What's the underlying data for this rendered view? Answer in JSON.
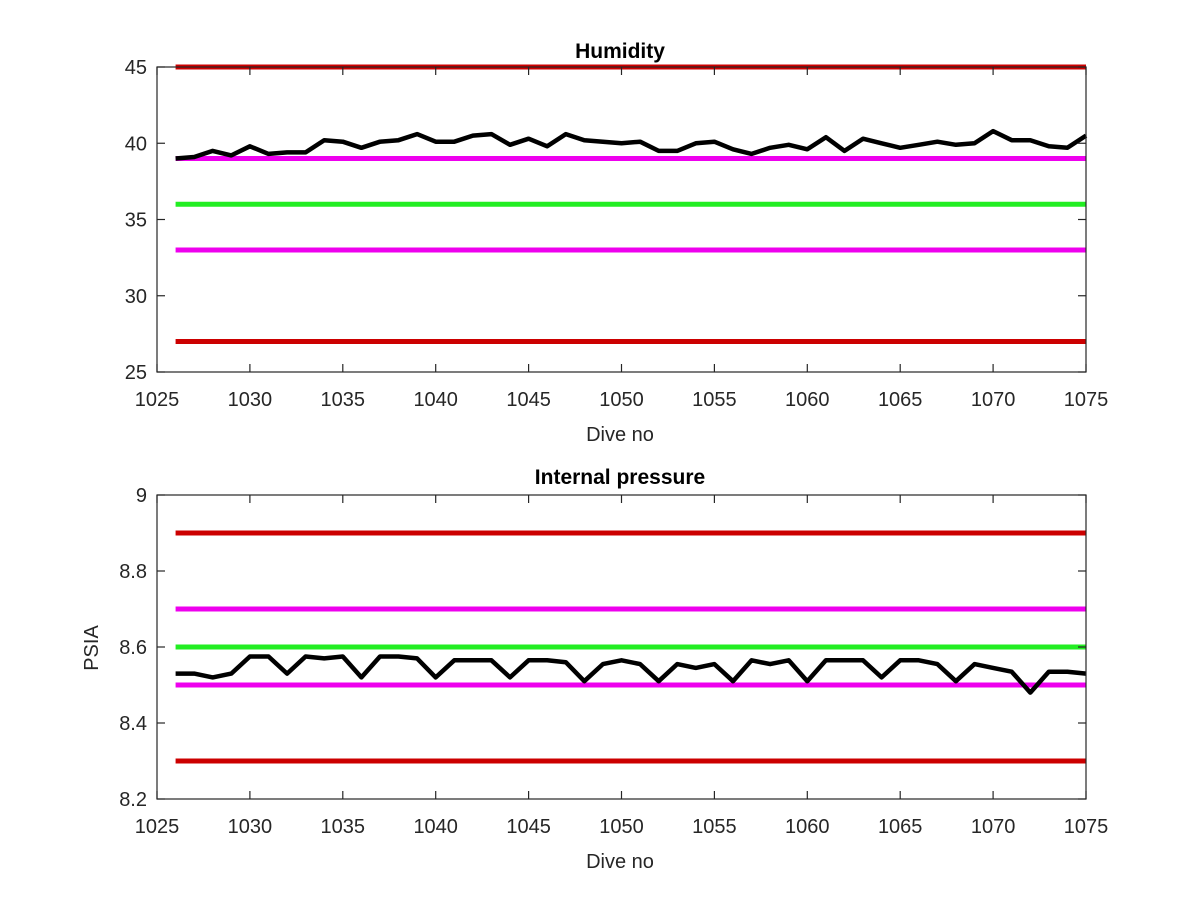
{
  "colors": {
    "background": "#ffffff",
    "axes": "#262626",
    "data_line": "#000000",
    "limit_red": "#cc0000",
    "limit_magenta": "#ee00ee",
    "nominal_green": "#22ee22"
  },
  "chart_data": [
    {
      "type": "line",
      "title": "Humidity",
      "xlabel": "Dive no",
      "ylabel": "",
      "xlim": [
        1025,
        1075
      ],
      "ylim": [
        25,
        45
      ],
      "xticks": [
        "1025",
        "1030",
        "1035",
        "1040",
        "1045",
        "1050",
        "1055",
        "1060",
        "1065",
        "1070",
        "1075"
      ],
      "yticks": [
        "25",
        "30",
        "35",
        "40",
        "45"
      ],
      "grid": false,
      "x": [
        1026,
        1027,
        1028,
        1029,
        1030,
        1031,
        1032,
        1033,
        1034,
        1035,
        1036,
        1037,
        1038,
        1039,
        1040,
        1041,
        1042,
        1043,
        1044,
        1045,
        1046,
        1047,
        1048,
        1049,
        1050,
        1051,
        1052,
        1053,
        1054,
        1055,
        1056,
        1057,
        1058,
        1059,
        1060,
        1061,
        1062,
        1063,
        1064,
        1065,
        1066,
        1067,
        1068,
        1069,
        1070,
        1071,
        1072,
        1073,
        1074,
        1075
      ],
      "series": [
        {
          "color": "#000000",
          "values": [
            39.0,
            39.1,
            39.5,
            39.2,
            39.8,
            39.3,
            39.4,
            39.4,
            40.2,
            40.1,
            39.7,
            40.1,
            40.2,
            40.6,
            40.1,
            40.1,
            40.5,
            40.6,
            39.9,
            40.3,
            39.8,
            40.6,
            40.2,
            40.1,
            40.0,
            40.1,
            39.5,
            39.5,
            40.0,
            40.1,
            39.6,
            39.3,
            39.7,
            39.9,
            39.6,
            40.4,
            39.5,
            40.3,
            40.0,
            39.7,
            39.9,
            40.1,
            39.9,
            40.0,
            40.8,
            40.2,
            40.2,
            39.8,
            39.7,
            40.5
          ]
        }
      ],
      "hlines": [
        {
          "y": 45,
          "color": "#cc0000"
        },
        {
          "y": 39,
          "color": "#ee00ee"
        },
        {
          "y": 36,
          "color": "#22ee22"
        },
        {
          "y": 33,
          "color": "#ee00ee"
        },
        {
          "y": 27,
          "color": "#cc0000"
        }
      ]
    },
    {
      "type": "line",
      "title": "Internal pressure",
      "xlabel": "Dive no",
      "ylabel": "PSIA",
      "xlim": [
        1025,
        1075
      ],
      "ylim": [
        8.2,
        9
      ],
      "xticks": [
        "1025",
        "1030",
        "1035",
        "1040",
        "1045",
        "1050",
        "1055",
        "1060",
        "1065",
        "1070",
        "1075"
      ],
      "yticks": [
        "8.2",
        "8.4",
        "8.6",
        "8.8",
        "9"
      ],
      "grid": false,
      "x": [
        1026,
        1027,
        1028,
        1029,
        1030,
        1031,
        1032,
        1033,
        1034,
        1035,
        1036,
        1037,
        1038,
        1039,
        1040,
        1041,
        1042,
        1043,
        1044,
        1045,
        1046,
        1047,
        1048,
        1049,
        1050,
        1051,
        1052,
        1053,
        1054,
        1055,
        1056,
        1057,
        1058,
        1059,
        1060,
        1061,
        1062,
        1063,
        1064,
        1065,
        1066,
        1067,
        1068,
        1069,
        1070,
        1071,
        1072,
        1073,
        1074,
        1075
      ],
      "series": [
        {
          "color": "#000000",
          "values": [
            8.53,
            8.53,
            8.52,
            8.53,
            8.575,
            8.575,
            8.53,
            8.575,
            8.57,
            8.575,
            8.52,
            8.575,
            8.575,
            8.57,
            8.52,
            8.565,
            8.565,
            8.565,
            8.52,
            8.565,
            8.565,
            8.56,
            8.51,
            8.555,
            8.565,
            8.555,
            8.51,
            8.555,
            8.545,
            8.555,
            8.51,
            8.565,
            8.555,
            8.565,
            8.51,
            8.565,
            8.565,
            8.565,
            8.52,
            8.565,
            8.565,
            8.555,
            8.51,
            8.555,
            8.545,
            8.535,
            8.48,
            8.535,
            8.535,
            8.53
          ]
        }
      ],
      "hlines": [
        {
          "y": 8.9,
          "color": "#cc0000"
        },
        {
          "y": 8.7,
          "color": "#ee00ee"
        },
        {
          "y": 8.6,
          "color": "#22ee22"
        },
        {
          "y": 8.5,
          "color": "#ee00ee"
        },
        {
          "y": 8.3,
          "color": "#cc0000"
        }
      ]
    }
  ]
}
